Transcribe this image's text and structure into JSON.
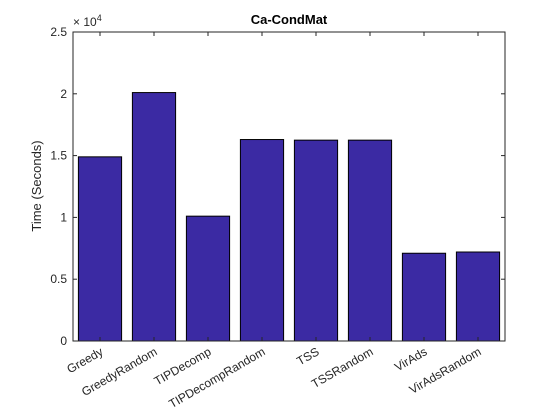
{
  "colors": {
    "bar_fill": "#3b2aa3",
    "bar_stroke": "#000000",
    "axis": "#262626",
    "background": "#ffffff"
  },
  "chart_data": {
    "type": "bar",
    "title": "Ca-CondMat",
    "xlabel": "",
    "ylabel": "Time (Seconds)",
    "exponent_label": "× 10",
    "exponent_power": "4",
    "categories": [
      "Greedy",
      "GreedyRandom",
      "TIPDecomp",
      "TIPDecompRandom",
      "TSS",
      "TSSRandom",
      "VirAds",
      "VirAdsRandom"
    ],
    "values": [
      14900,
      20100,
      10100,
      16300,
      16250,
      16250,
      7100,
      7200
    ],
    "ylim": [
      0,
      25000
    ],
    "yticks": [
      0,
      5000,
      10000,
      15000,
      20000,
      25000
    ],
    "ytick_labels": [
      "0",
      "0.5",
      "1",
      "1.5",
      "2",
      "2.5"
    ],
    "grid": false
  }
}
